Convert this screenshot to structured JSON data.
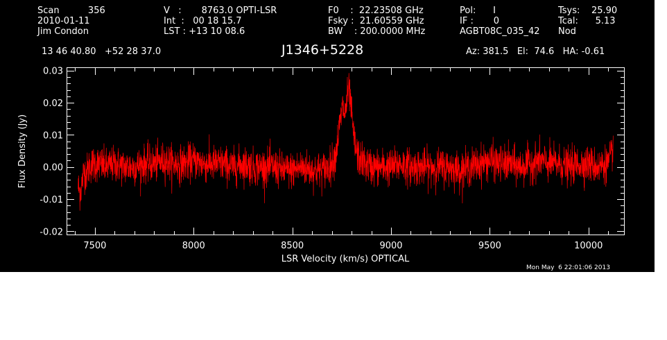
{
  "header": {
    "col1": [
      "Scan          356",
      "2010-01-11",
      "Jim Condon"
    ],
    "col2": [
      "V   :       8763.0 OPTI-LSR",
      "Int  :   00 18 15.7",
      "LST : +13 10 08.6"
    ],
    "col3": [
      "F0    :  22.23508 GHz",
      "Fsky :  21.60559 GHz",
      "BW    : 200.0000 MHz"
    ],
    "col4": [
      "Pol:      I",
      "IF :       0",
      "AGBT08C_035_42"
    ],
    "col5": [
      "Tsys:    25.90",
      "Tcal:      5.13",
      "Nod"
    ],
    "coords": "13 46 40.80   +52 28 37.0",
    "source": "J1346+5228",
    "pointing": "Az: 381.5   El:  74.6   HA: -0.61",
    "timestamp": "Mon May  6 22:01:06 2013"
  },
  "colors": {
    "background": "#000000",
    "axes": "#ffffff",
    "trace": "#ff0000"
  },
  "chart_data": {
    "type": "line",
    "title": "J1346+5228",
    "xlabel": "LSR Velocity (km/s) OPTICAL",
    "ylabel": "Flux Density (Jy)",
    "xlim": [
      7360,
      10180
    ],
    "ylim": [
      -0.021,
      0.0308
    ],
    "x_ticks": [
      7500,
      8000,
      8500,
      9000,
      9500,
      10000
    ],
    "y_ticks": [
      -0.02,
      -0.01,
      0.0,
      0.01,
      0.02,
      0.03
    ],
    "x_tick_labels": [
      "7500",
      "8000",
      "8500",
      "9000",
      "9500",
      "10000"
    ],
    "y_tick_labels": [
      "-0.02",
      "-0.01",
      "0.00",
      "0.01",
      "0.02",
      "0.03"
    ],
    "grid": false,
    "series": [
      {
        "x": [
          7415,
          7425,
          7435,
          7445,
          7455,
          7470,
          7490,
          7520,
          7560,
          7600,
          7650,
          7700,
          7750,
          7800,
          7850,
          7900,
          7950,
          8000,
          8050,
          8100,
          8150,
          8200,
          8250,
          8300,
          8350,
          8400,
          8450,
          8500,
          8550,
          8600,
          8650,
          8690,
          8720,
          8740,
          8755,
          8765,
          8775,
          8785,
          8792,
          8800,
          8810,
          8820,
          8835,
          8850,
          8870,
          8900,
          8950,
          9000,
          9050,
          9100,
          9150,
          9200,
          9250,
          9300,
          9350,
          9400,
          9450,
          9500,
          9550,
          9600,
          9650,
          9700,
          9750,
          9800,
          9850,
          9900,
          9950,
          10000,
          10050,
          10080,
          10100,
          10115,
          10125
        ],
        "y": [
          -0.006,
          -0.008,
          -0.005,
          -0.001,
          -0.002,
          0.0,
          0.001,
          0.001,
          0.0,
          0.001,
          0.0,
          0.0,
          0.001,
          0.001,
          0.002,
          0.001,
          0.001,
          0.002,
          0.001,
          0.001,
          0.001,
          0.0,
          0.001,
          0.0,
          0.0,
          0.0,
          -0.001,
          -0.001,
          0.0,
          -0.001,
          -0.001,
          0.0,
          0.004,
          0.013,
          0.019,
          0.016,
          0.02,
          0.024,
          0.022,
          0.016,
          0.01,
          0.006,
          0.003,
          0.002,
          0.001,
          0.0,
          0.0,
          0.0,
          0.001,
          0.0,
          0.0,
          0.0,
          0.0,
          0.0,
          -0.001,
          0.0,
          0.001,
          0.002,
          0.001,
          0.001,
          0.0,
          0.001,
          0.002,
          0.001,
          0.001,
          0.0,
          0.001,
          0.001,
          0.0,
          0.001,
          0.001,
          0.003,
          0.007
        ],
        "noise_rms": 0.0028
      }
    ]
  }
}
